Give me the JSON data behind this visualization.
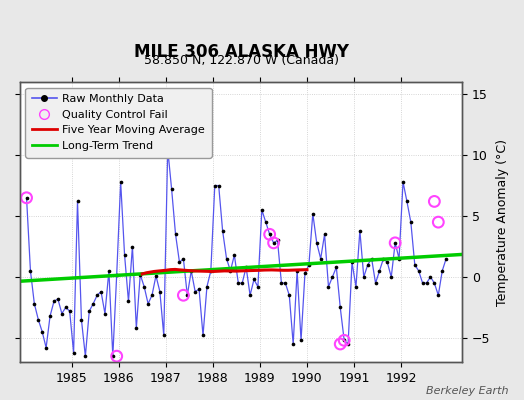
{
  "title": "MILE 306 ALASKA HWY",
  "subtitle": "58.850 N, 122.870 W (Canada)",
  "ylabel": "Temperature Anomaly (°C)",
  "watermark": "Berkeley Earth",
  "ylim": [
    -7,
    16
  ],
  "yticks": [
    -5,
    0,
    5,
    10,
    15
  ],
  "xlim": [
    1983.9,
    1993.3
  ],
  "background_color": "#e8e8e8",
  "plot_bg_color": "#ffffff",
  "raw_data_x": [
    1984.042,
    1984.125,
    1984.208,
    1984.292,
    1984.375,
    1984.458,
    1984.542,
    1984.625,
    1984.708,
    1984.792,
    1984.875,
    1984.958,
    1985.042,
    1985.125,
    1985.208,
    1985.292,
    1985.375,
    1985.458,
    1985.542,
    1985.625,
    1985.708,
    1985.792,
    1985.875,
    1985.958,
    1986.042,
    1986.125,
    1986.208,
    1986.292,
    1986.375,
    1986.458,
    1986.542,
    1986.625,
    1986.708,
    1986.792,
    1986.875,
    1986.958,
    1987.042,
    1987.125,
    1987.208,
    1987.292,
    1987.375,
    1987.458,
    1987.542,
    1987.625,
    1987.708,
    1987.792,
    1987.875,
    1987.958,
    1988.042,
    1988.125,
    1988.208,
    1988.292,
    1988.375,
    1988.458,
    1988.542,
    1988.625,
    1988.708,
    1988.792,
    1988.875,
    1988.958,
    1989.042,
    1989.125,
    1989.208,
    1989.292,
    1989.375,
    1989.458,
    1989.542,
    1989.625,
    1989.708,
    1989.792,
    1989.875,
    1989.958,
    1990.042,
    1990.125,
    1990.208,
    1990.292,
    1990.375,
    1990.458,
    1990.542,
    1990.625,
    1990.708,
    1990.792,
    1990.875,
    1990.958,
    1991.042,
    1991.125,
    1991.208,
    1991.292,
    1991.375,
    1991.458,
    1991.542,
    1991.625,
    1991.708,
    1991.792,
    1991.875,
    1991.958,
    1992.042,
    1992.125,
    1992.208,
    1992.292,
    1992.375,
    1992.458,
    1992.542,
    1992.625,
    1992.708,
    1992.792,
    1992.875,
    1992.958
  ],
  "raw_data_y": [
    6.5,
    0.5,
    -2.2,
    -3.5,
    -4.5,
    -5.8,
    -3.2,
    -2.0,
    -1.8,
    -3.0,
    -2.5,
    -2.8,
    -6.2,
    6.2,
    -3.5,
    -6.5,
    -2.8,
    -2.2,
    -1.5,
    -1.2,
    -3.0,
    0.5,
    -6.5,
    0.2,
    7.8,
    1.8,
    -2.0,
    2.5,
    -4.2,
    0.2,
    -0.8,
    -2.2,
    -1.5,
    0.1,
    -1.2,
    -4.8,
    10.5,
    7.2,
    3.5,
    1.2,
    1.5,
    -1.5,
    0.5,
    -1.2,
    -1.0,
    -4.8,
    -0.8,
    0.5,
    7.5,
    7.5,
    3.8,
    1.5,
    0.5,
    1.8,
    -0.5,
    -0.5,
    0.8,
    -1.5,
    -0.2,
    -0.8,
    5.5,
    4.5,
    3.5,
    2.8,
    3.0,
    -0.5,
    -0.5,
    -1.5,
    -5.5,
    0.5,
    -5.2,
    0.3,
    1.0,
    5.2,
    2.8,
    1.5,
    3.5,
    -0.8,
    0.0,
    0.8,
    -2.5,
    -5.2,
    -5.5,
    1.2,
    -0.8,
    3.8,
    0.0,
    1.0,
    1.5,
    -0.5,
    0.5,
    1.5,
    1.2,
    0.0,
    2.8,
    1.5,
    7.8,
    6.2,
    4.5,
    1.0,
    0.5,
    -0.5,
    -0.5,
    0.0,
    -0.5,
    -1.5,
    0.5,
    1.5
  ],
  "qc_fail_x": [
    1984.042,
    1985.958,
    1987.042,
    1987.375,
    1989.208,
    1989.292,
    1990.708,
    1990.792,
    1991.875,
    1992.708,
    1992.792
  ],
  "qc_fail_y": [
    6.5,
    -6.5,
    10.5,
    -1.5,
    3.5,
    2.8,
    -5.5,
    -5.2,
    2.8,
    6.2,
    4.5
  ],
  "moving_avg_x": [
    1986.5,
    1986.6,
    1986.75,
    1987.0,
    1987.1,
    1987.2,
    1987.3,
    1987.5,
    1987.6,
    1987.75,
    1988.0,
    1988.1,
    1988.25,
    1988.5,
    1988.6,
    1988.75,
    1989.0,
    1989.1,
    1989.25,
    1989.5,
    1989.6,
    1989.75,
    1990.0
  ],
  "moving_avg_y": [
    0.25,
    0.35,
    0.45,
    0.55,
    0.6,
    0.62,
    0.58,
    0.52,
    0.5,
    0.48,
    0.45,
    0.47,
    0.5,
    0.48,
    0.5,
    0.52,
    0.55,
    0.57,
    0.58,
    0.55,
    0.55,
    0.57,
    0.6
  ],
  "trend_x": [
    1983.9,
    1993.3
  ],
  "trend_y": [
    -0.35,
    1.85
  ],
  "raw_line_color": "#5555ee",
  "raw_dot_color": "#000000",
  "qc_color": "#ff44ff",
  "ma_color": "#dd0000",
  "trend_color": "#00cc00",
  "legend_bg": "#f0f0f0",
  "grid_color": "#c8c8c8",
  "xtick_positions": [
    1985,
    1986,
    1987,
    1988,
    1989,
    1990,
    1991,
    1992
  ]
}
